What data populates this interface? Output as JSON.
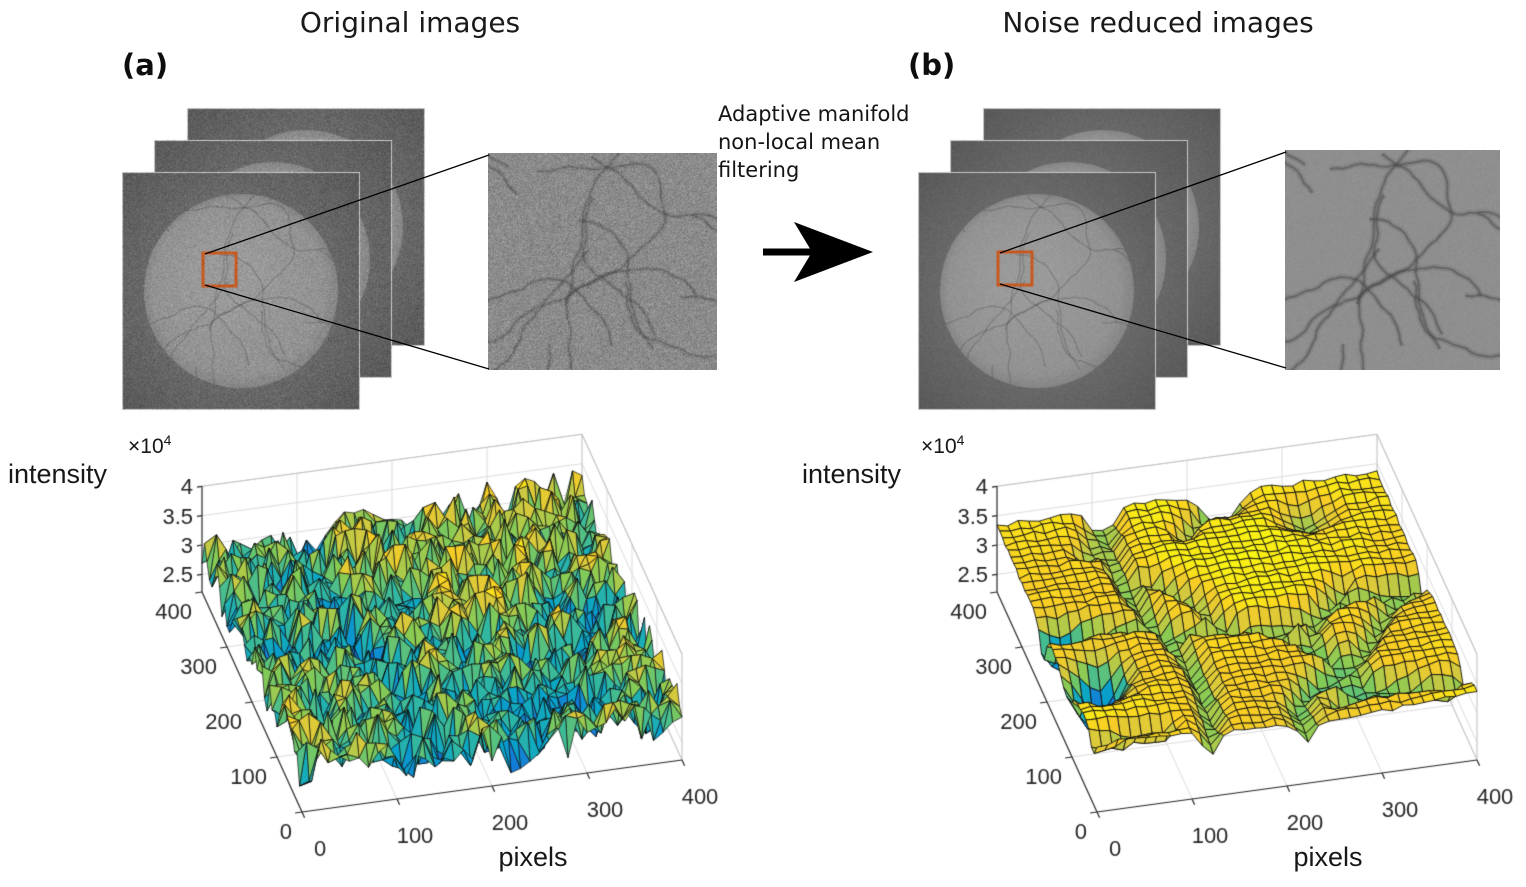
{
  "figure": {
    "panel_a": {
      "label": "(a)",
      "title": "Original images"
    },
    "panel_b": {
      "label": "(b)",
      "title": "Noise reduced images"
    },
    "filter_text": {
      "line1": "Adaptive manifold",
      "line2": "non-local mean",
      "line3": "filtering"
    },
    "highlight_box_color": "#C8581E",
    "arrow_color": "#000000"
  },
  "render": {
    "crack_seed": 23,
    "valley_seed": 9,
    "noise_seed_a": 101,
    "noise_seed_b": 202,
    "grays": {
      "frame_bg": "#5E5E5E",
      "frame_border": "#C9C9C9",
      "disc": "#929292",
      "crop_a_bg": "#8B8B8B",
      "crop_b_bg": "#8F8F8F",
      "crack": "#464646"
    },
    "noise_sigma": {
      "stack_a": 9,
      "stack_b": 4,
      "crop_a": 13,
      "crop_b": 3
    }
  },
  "chart_data": [
    {
      "type": "surface",
      "panel": "a",
      "title": "",
      "xlabel": "pixels",
      "zlabel": "intensity",
      "z_scale": {
        "prefix": "×10",
        "sup": "4"
      },
      "x_ticks": [
        "0",
        "100",
        "200",
        "300",
        "400"
      ],
      "y_ticks": [
        "0",
        "100",
        "200",
        "300",
        "400"
      ],
      "z_ticks": [
        "2.5",
        "3",
        "3.5",
        "4"
      ],
      "x_tick_values": [
        0,
        100,
        200,
        300,
        400
      ],
      "y_tick_values": [
        0,
        100,
        200,
        300,
        400
      ],
      "z_tick_values": [
        25000,
        30000,
        35000,
        40000
      ],
      "x_range": [
        0,
        400
      ],
      "y_range": [
        0,
        400
      ],
      "z_range": [
        22000,
        40000
      ],
      "colormap": "parula",
      "grid": true,
      "surface": {
        "grid": 40,
        "base": 29700,
        "noise_amp": 3800,
        "wave_amp": 900,
        "valley_depth": 2300,
        "seed": 7,
        "style": "jagged"
      },
      "description": "Raw SEM image intensity over a 400x400 pixel region: heavy pixel noise, jagged surface, mid-range intensities around 3x10^4"
    },
    {
      "type": "surface",
      "panel": "b",
      "title": "",
      "xlabel": "pixels",
      "zlabel": "intensity",
      "z_scale": {
        "prefix": "×10",
        "sup": "4"
      },
      "x_ticks": [
        "0",
        "100",
        "200",
        "300",
        "400"
      ],
      "y_ticks": [
        "0",
        "100",
        "200",
        "300",
        "400"
      ],
      "z_ticks": [
        "2.5",
        "3",
        "3.5",
        "4"
      ],
      "x_tick_values": [
        0,
        100,
        200,
        300,
        400
      ],
      "y_tick_values": [
        0,
        100,
        200,
        300,
        400
      ],
      "z_tick_values": [
        25000,
        30000,
        35000,
        40000
      ],
      "x_range": [
        0,
        400
      ],
      "y_range": [
        0,
        400
      ],
      "z_range": [
        22000,
        40000
      ],
      "colormap": "parula",
      "grid": true,
      "surface": {
        "grid": 36,
        "base": 33300,
        "noise_amp": 380,
        "wave_amp": 520,
        "valley_depth": 3800,
        "seed": 7,
        "style": "quad",
        "pits": [
          {
            "u": 0.07,
            "v": 0.3,
            "depth": 8500,
            "r": 0.05
          },
          {
            "u": 0.11,
            "v": 0.36,
            "depth": 6000,
            "r": 0.04
          },
          {
            "u": 0.05,
            "v": 0.55,
            "depth": 4500,
            "r": 0.035
          },
          {
            "u": 0.78,
            "v": 0.88,
            "depth": 3600,
            "r": 0.05
          },
          {
            "u": 0.6,
            "v": 0.97,
            "depth": 3000,
            "r": 0.04
          }
        ]
      },
      "description": "Denoised intensity surface after adaptive manifold non-local mean filtering: smooth plateau near 3.3x10^4 with green/blue valleys along grain boundaries"
    }
  ],
  "colors": {
    "parula": [
      "#352A87",
      "#0363E1",
      "#1480D6",
      "#06A4CA",
      "#32B8A1",
      "#84CB56",
      "#D4C93E",
      "#FACD24",
      "#F9FB0E"
    ],
    "axis_text": "#262626",
    "grid_line": "#DBDBDB",
    "box_edge": "#C2C2C2",
    "surface_edge": "#101010"
  }
}
